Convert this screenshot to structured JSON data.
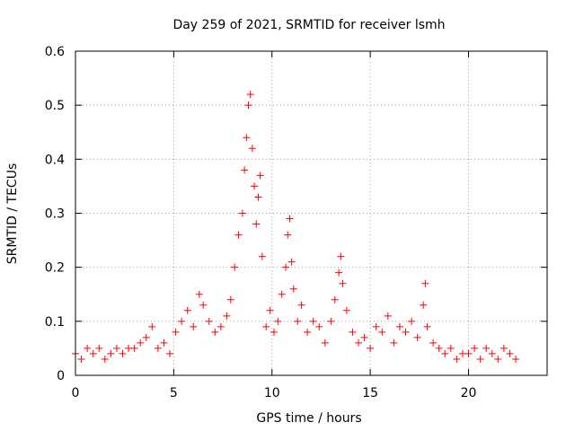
{
  "chart_data": {
    "type": "scatter",
    "title": "Day 259 of 2021, SRMTID for receiver lsmh",
    "xlabel": "GPS time / hours",
    "ylabel": "SRMTID / TECUs",
    "xlim": [
      0,
      24
    ],
    "ylim": [
      0,
      0.6
    ],
    "xticks": [
      0,
      5,
      10,
      15,
      20
    ],
    "yticks": [
      0,
      0.1,
      0.2,
      0.3,
      0.4,
      0.5,
      0.6
    ],
    "grid": true,
    "marker": "+",
    "color": "#ff0000",
    "series": [
      {
        "name": "SRMTID",
        "x": [
          0.0,
          0.3,
          0.6,
          0.9,
          1.2,
          1.5,
          1.8,
          2.1,
          2.4,
          2.7,
          3.0,
          3.3,
          3.6,
          3.9,
          4.2,
          4.5,
          4.8,
          5.1,
          5.4,
          5.7,
          6.0,
          6.3,
          6.5,
          6.8,
          7.1,
          7.4,
          7.7,
          7.9,
          8.1,
          8.3,
          8.5,
          8.6,
          8.7,
          8.8,
          8.9,
          9.0,
          9.1,
          9.2,
          9.3,
          9.4,
          9.5,
          9.7,
          9.9,
          10.1,
          10.3,
          10.5,
          10.7,
          10.8,
          10.9,
          11.0,
          11.1,
          11.3,
          11.5,
          11.8,
          12.1,
          12.4,
          12.7,
          13.0,
          13.2,
          13.4,
          13.5,
          13.6,
          13.8,
          14.1,
          14.4,
          14.7,
          15.0,
          15.3,
          15.6,
          15.9,
          16.2,
          16.5,
          16.8,
          17.1,
          17.4,
          17.7,
          17.8,
          17.9,
          18.2,
          18.5,
          18.8,
          19.1,
          19.4,
          19.7,
          20.0,
          20.3,
          20.6,
          20.9,
          21.2,
          21.5,
          21.8,
          22.1,
          22.4
        ],
        "y": [
          0.04,
          0.03,
          0.05,
          0.04,
          0.05,
          0.03,
          0.04,
          0.05,
          0.04,
          0.05,
          0.05,
          0.06,
          0.07,
          0.09,
          0.05,
          0.06,
          0.04,
          0.08,
          0.1,
          0.12,
          0.09,
          0.15,
          0.13,
          0.1,
          0.08,
          0.09,
          0.11,
          0.14,
          0.2,
          0.26,
          0.3,
          0.38,
          0.44,
          0.5,
          0.52,
          0.42,
          0.35,
          0.28,
          0.33,
          0.37,
          0.22,
          0.09,
          0.12,
          0.08,
          0.1,
          0.15,
          0.2,
          0.26,
          0.29,
          0.21,
          0.16,
          0.1,
          0.13,
          0.08,
          0.1,
          0.09,
          0.06,
          0.1,
          0.14,
          0.19,
          0.22,
          0.17,
          0.12,
          0.08,
          0.06,
          0.07,
          0.05,
          0.09,
          0.08,
          0.11,
          0.06,
          0.09,
          0.08,
          0.1,
          0.07,
          0.13,
          0.17,
          0.09,
          0.06,
          0.05,
          0.04,
          0.05,
          0.03,
          0.04,
          0.04,
          0.05,
          0.03,
          0.05,
          0.04,
          0.03,
          0.05,
          0.04,
          0.03
        ]
      }
    ]
  }
}
